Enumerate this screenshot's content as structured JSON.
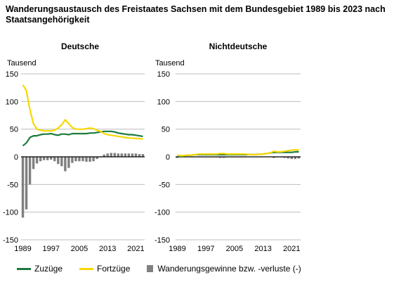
{
  "title": "Wanderungsaustausch des Freistaates Sachsen mit dem Bundesgebiet  1989 bis 2023 nach Staatsangehörigkeit",
  "colors": {
    "zuzuege": "#1b7a3e",
    "fortzuege": "#f6d800",
    "saldo": "#808080"
  },
  "legend": [
    {
      "key": "zuzuege",
      "label": "Zuzüge",
      "shape": "line"
    },
    {
      "key": "fortzuege",
      "label": "Fortzüge",
      "shape": "line"
    },
    {
      "key": "saldo",
      "label": "Wanderungsgewinne bzw. -verluste (-)",
      "shape": "box"
    }
  ],
  "chart_data": [
    {
      "type": "bar+line",
      "title": "Deutsche",
      "ylabel": "Tausend",
      "ylim": [
        -150,
        150
      ],
      "yticks": [
        150,
        100,
        50,
        0,
        -50,
        -100,
        -150
      ],
      "xticks": [
        "1989",
        "1997",
        "2005",
        "2013",
        "2021"
      ],
      "years": [
        1989,
        1990,
        1991,
        1992,
        1993,
        1994,
        1995,
        1996,
        1997,
        1998,
        1999,
        2000,
        2001,
        2002,
        2003,
        2004,
        2005,
        2006,
        2007,
        2008,
        2009,
        2010,
        2011,
        2012,
        2013,
        2014,
        2015,
        2016,
        2017,
        2018,
        2019,
        2020,
        2021,
        2022,
        2023
      ],
      "series": [
        {
          "key": "zuzuege",
          "name": "Zuzüge",
          "values": [
            20,
            25,
            35,
            38,
            38,
            40,
            41,
            41,
            42,
            40,
            39,
            41,
            41,
            40,
            42,
            42,
            42,
            42,
            42,
            43,
            43,
            44,
            45,
            46,
            46,
            46,
            45,
            43,
            42,
            41,
            40,
            40,
            39,
            38,
            37
          ]
        },
        {
          "key": "fortzuege",
          "name": "Fortzüge",
          "values": [
            130,
            120,
            85,
            60,
            50,
            48,
            47,
            47,
            47,
            48,
            52,
            58,
            67,
            60,
            53,
            50,
            50,
            50,
            51,
            52,
            51,
            48,
            46,
            42,
            40,
            39,
            38,
            37,
            36,
            35,
            34,
            34,
            33,
            33,
            32
          ]
        },
        {
          "key": "saldo",
          "name": "Wanderungsgewinne bzw. -verluste (-)",
          "values": [
            -110,
            -95,
            -50,
            -22,
            -12,
            -8,
            -6,
            -6,
            -5,
            -8,
            -13,
            -17,
            -26,
            -20,
            -11,
            -8,
            -8,
            -8,
            -9,
            -9,
            -8,
            -4,
            -1,
            4,
            6,
            7,
            7,
            6,
            6,
            6,
            6,
            6,
            6,
            5,
            5
          ]
        }
      ]
    },
    {
      "type": "bar+line",
      "title": "Nichtdeutsche",
      "ylabel": "Tausend",
      "ylim": [
        -150,
        150
      ],
      "yticks": [
        150,
        100,
        50,
        0,
        -50,
        -100,
        -150
      ],
      "xticks": [
        "1989",
        "1997",
        "2005",
        "2013",
        "2021"
      ],
      "years": [
        1989,
        1990,
        1991,
        1992,
        1993,
        1994,
        1995,
        1996,
        1997,
        1998,
        1999,
        2000,
        2001,
        2002,
        2003,
        2004,
        2005,
        2006,
        2007,
        2008,
        2009,
        2010,
        2011,
        2012,
        2013,
        2014,
        2015,
        2016,
        2017,
        2018,
        2019,
        2020,
        2021,
        2022,
        2023
      ],
      "series": [
        {
          "key": "zuzuege",
          "name": "Zuzüge",
          "values": [
            1,
            1,
            2,
            3,
            3,
            4,
            4,
            4,
            4,
            4,
            4,
            4,
            4,
            4,
            4,
            4,
            4,
            4,
            4,
            4,
            4,
            4,
            4,
            5,
            5,
            6,
            7,
            8,
            8,
            8,
            8,
            8,
            8,
            9,
            9
          ]
        },
        {
          "key": "fortzuege",
          "name": "Fortzüge",
          "values": [
            3,
            2,
            2,
            3,
            3,
            4,
            5,
            5,
            5,
            5,
            5,
            5,
            6,
            6,
            5,
            5,
            5,
            5,
            5,
            5,
            4,
            4,
            4,
            5,
            5,
            6,
            7,
            10,
            9,
            9,
            10,
            11,
            12,
            13,
            12
          ]
        },
        {
          "key": "saldo",
          "name": "Wanderungsgewinne bzw. -verluste (-)",
          "values": [
            -2,
            -1,
            0,
            0,
            0,
            0,
            -1,
            -1,
            -1,
            -1,
            -1,
            -1,
            -2,
            -2,
            -1,
            -1,
            -1,
            -1,
            -1,
            -1,
            0,
            0,
            0,
            0,
            0,
            0,
            0,
            -2,
            -1,
            -1,
            -2,
            -3,
            -4,
            -4,
            -3
          ]
        }
      ]
    }
  ]
}
